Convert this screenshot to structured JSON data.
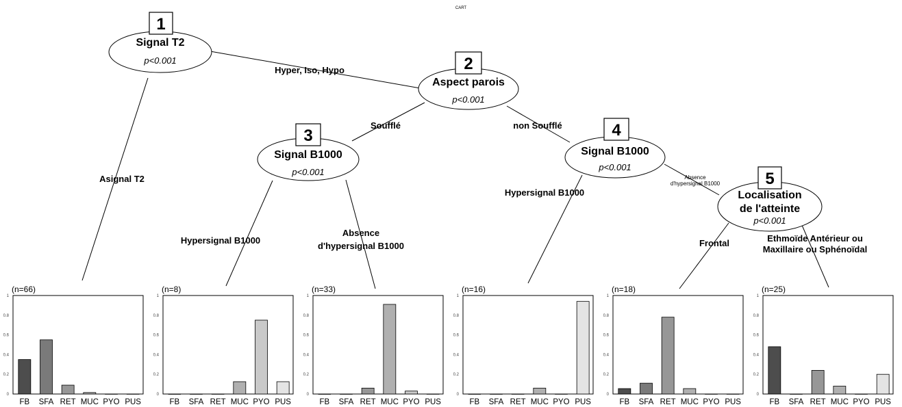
{
  "title": "CART",
  "nodes": [
    {
      "id": "1",
      "number": "1",
      "lines": [
        "Signal T2"
      ],
      "pvalue": "p<0.001"
    },
    {
      "id": "2",
      "number": "2",
      "lines": [
        "Aspect parois"
      ],
      "pvalue": "p<0.001"
    },
    {
      "id": "3",
      "number": "3",
      "lines": [
        "Signal B1000"
      ],
      "pvalue": "p<0.001"
    },
    {
      "id": "4",
      "number": "4",
      "lines": [
        "Signal B1000"
      ],
      "pvalue": "p<0.001"
    },
    {
      "id": "5",
      "number": "5",
      "lines": [
        "Localisation",
        "de l'atteinte"
      ],
      "pvalue": "p<0.001"
    }
  ],
  "edges": [
    {
      "id": "e1-2",
      "lines": [
        "Hyper, Iso, Hypo"
      ]
    },
    {
      "id": "e1-l1",
      "lines": [
        "Asignal T2"
      ]
    },
    {
      "id": "e2-3",
      "lines": [
        "Soufflé"
      ]
    },
    {
      "id": "e2-4",
      "lines": [
        "non Soufflé"
      ]
    },
    {
      "id": "e3-l2",
      "lines": [
        "Hypersignal B1000"
      ]
    },
    {
      "id": "e3-l3",
      "lines": [
        "Absence",
        "d'hypersignal B1000"
      ]
    },
    {
      "id": "e4-l4",
      "lines": [
        "Hypersignal B1000"
      ]
    },
    {
      "id": "e4-5",
      "lines": [
        "Absence",
        "d'hypersignal B1000"
      ]
    },
    {
      "id": "e5-l5",
      "lines": [
        "Frontal"
      ]
    },
    {
      "id": "e5-l6",
      "lines": [
        "Ethmoïde Antérieur ou",
        "Maxillaire ou Sphénoïdal"
      ]
    }
  ],
  "chart_data": {
    "type": "bar",
    "categories": [
      "FB",
      "SFA",
      "RET",
      "MUC",
      "PYO",
      "PUS"
    ],
    "ylim": [
      0,
      1
    ],
    "yticks": [
      "0",
      "0.2",
      "0.4",
      "0.6",
      "0.8",
      "1"
    ],
    "colors": [
      "#4d4d4d",
      "#7a7a7a",
      "#979797",
      "#b0b0b0",
      "#c9c9c9",
      "#e4e4e4"
    ],
    "leaves": [
      {
        "n": "(n=66)",
        "values": [
          0.35,
          0.55,
          0.09,
          0.015,
          0,
          0
        ]
      },
      {
        "n": "(n=8)",
        "values": [
          0,
          0,
          0,
          0.125,
          0.75,
          0.125
        ]
      },
      {
        "n": "(n=33)",
        "values": [
          0,
          0,
          0.06,
          0.91,
          0.03,
          0
        ]
      },
      {
        "n": "(n=16)",
        "values": [
          0,
          0,
          0,
          0.06,
          0,
          0.94
        ]
      },
      {
        "n": "(n=18)",
        "values": [
          0.055,
          0.11,
          0.78,
          0.055,
          0,
          0
        ]
      },
      {
        "n": "(n=25)",
        "values": [
          0.48,
          0,
          0.24,
          0.08,
          0,
          0.2
        ]
      }
    ]
  }
}
